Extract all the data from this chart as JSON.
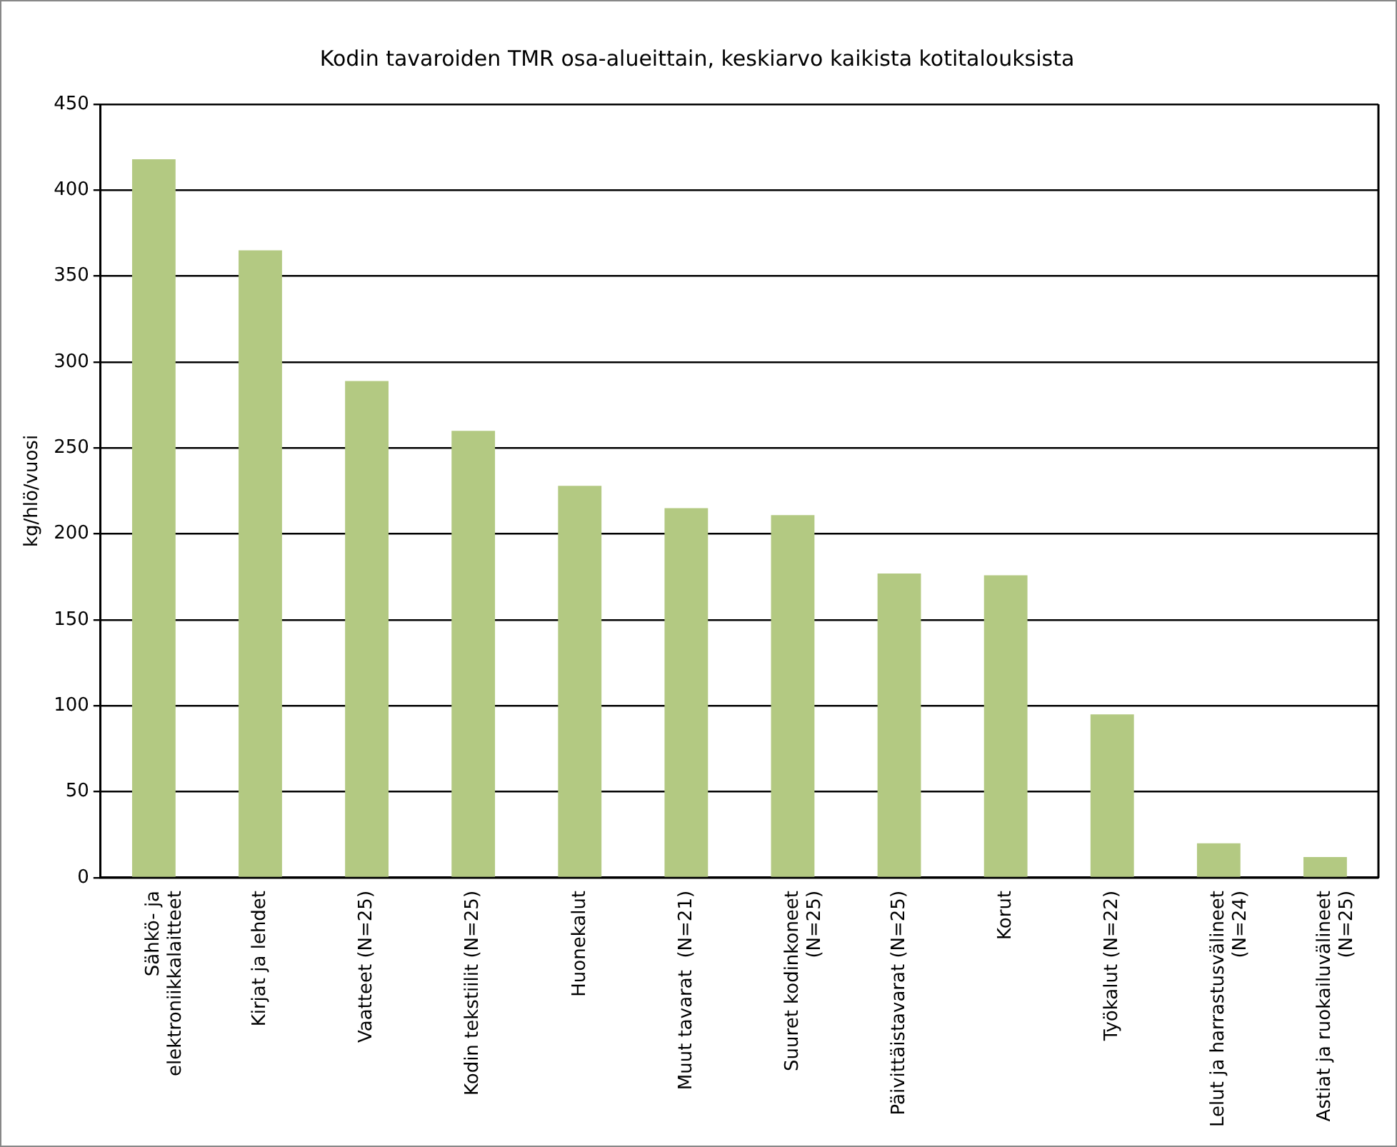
{
  "chart_data": {
    "type": "bar",
    "title": "Kodin tavaroiden TMR osa-alueittain, keskiarvo kaikista kotitalouksista",
    "ylabel": "kg/hlö/vuosi",
    "categories": [
      "Sähkö- ja\nelektroniikkalaitteet",
      "Kirjat ja lehdet",
      "Vaatteet (N=25)",
      "Kodin tekstiilit (N=25)",
      "Huonekalut",
      "Muut tavarat  (N=21)",
      "Suuret kodinkoneet\n(N=25)",
      "Päivittäistavarat (N=25)",
      "Korut",
      "Työkalut (N=22)",
      "Lelut ja harrastusvälineet\n(N=24)",
      "Astiat ja ruokailuvälineet\n(N=25)"
    ],
    "values": [
      418,
      365,
      289,
      260,
      228,
      215,
      211,
      177,
      176,
      95,
      20,
      12
    ],
    "color": "#b3c982",
    "ylim": [
      0,
      450
    ],
    "yticks": [
      0,
      50,
      100,
      150,
      200,
      250,
      300,
      350,
      400,
      450
    ],
    "grid": "y",
    "legend": false
  }
}
